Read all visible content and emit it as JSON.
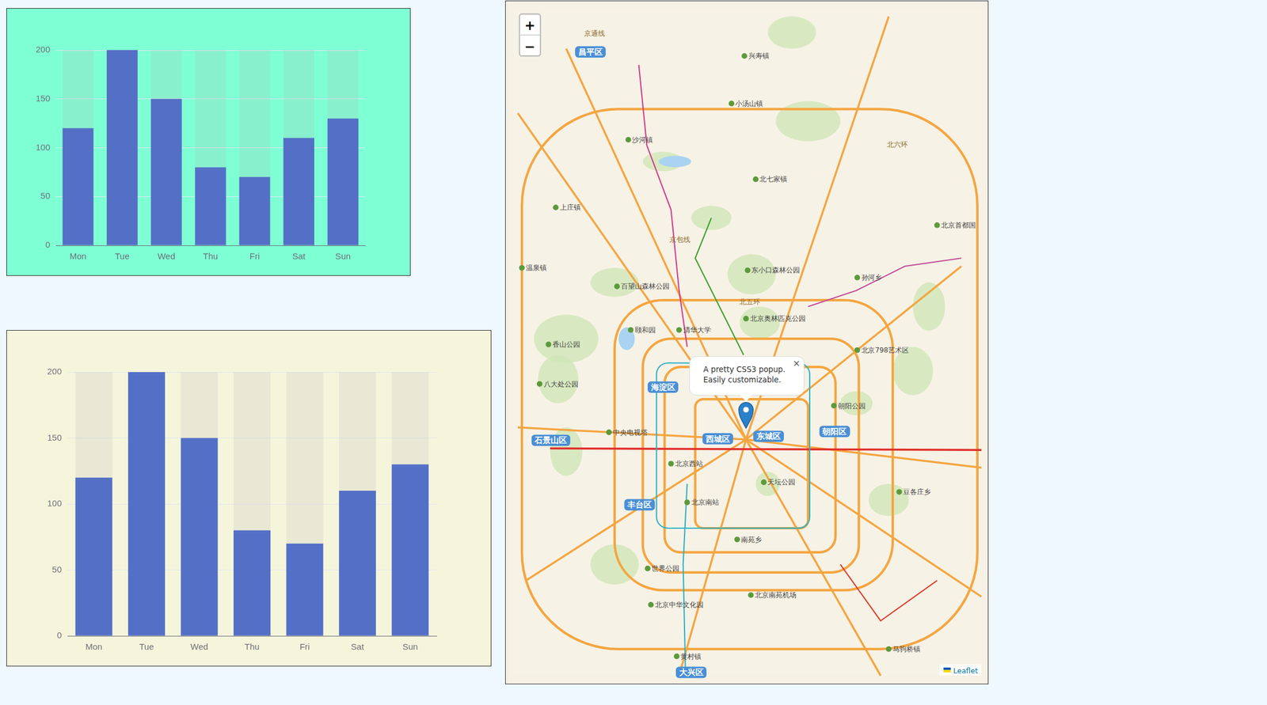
{
  "chart_data": [
    {
      "type": "bar",
      "categories": [
        "Mon",
        "Tue",
        "Wed",
        "Thu",
        "Fri",
        "Sat",
        "Sun"
      ],
      "values": [
        120,
        200,
        150,
        80,
        70,
        110,
        130
      ],
      "color": "#5470c6",
      "ylim": [
        0,
        200
      ],
      "yticks": [
        0,
        50,
        100,
        150,
        200
      ],
      "grid": true
    },
    {
      "type": "bar",
      "categories": [
        "Mon",
        "Tue",
        "Wed",
        "Thu",
        "Fri",
        "Sat",
        "Sun"
      ],
      "values": [
        120,
        200,
        150,
        80,
        70,
        110,
        130
      ],
      "color": "#5470c6",
      "ylim": [
        0,
        200
      ],
      "yticks": [
        0,
        50,
        100,
        150,
        200
      ],
      "grid": true
    }
  ],
  "map": {
    "zoom_in": "+",
    "zoom_out": "−",
    "popup": {
      "lines": [
        "A pretty CSS3 popup.",
        "Easily customizable."
      ],
      "close": "×"
    },
    "districts": [
      "昌平区",
      "海淀区",
      "西城区",
      "东城区",
      "朝阳区",
      "石景山区",
      "丰台区",
      "大兴区"
    ],
    "places": [
      "北京西站",
      "北京南站",
      "颐和园",
      "清华大学",
      "北京奥林匹克公园",
      "天坛公园",
      "香山公园",
      "北京南苑机场",
      "沙河镇",
      "温泉镇",
      "上庄镇",
      "小汤山镇",
      "兴寿镇",
      "北七家镇",
      "孙河乡",
      "南苑乡",
      "黄村镇",
      "马驹桥镇",
      "豆各庄乡",
      "朝阳公园",
      "北京798艺术区",
      "北京首都国",
      "八大处公园",
      "百望山森林公园",
      "东小口森林公园",
      "中央电视塔",
      "世界公园",
      "北京中华文化园"
    ],
    "roads": [
      "北六环",
      "北五环",
      "京包线",
      "京通线"
    ],
    "attribution": "Leaflet"
  }
}
